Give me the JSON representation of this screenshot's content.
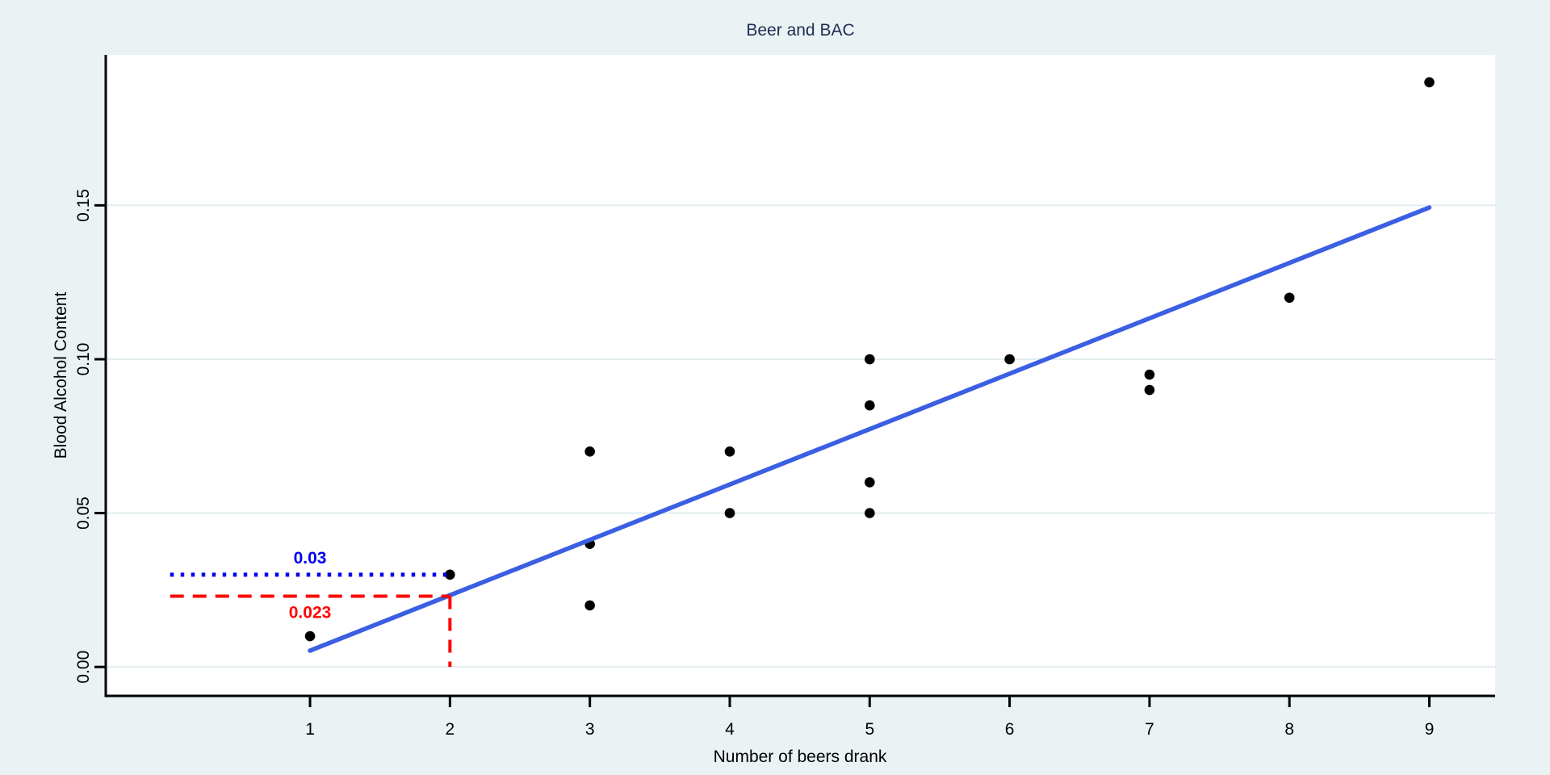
{
  "chart_data": {
    "type": "scatter",
    "title": "Beer and BAC",
    "xlabel": "Number of beers drank",
    "ylabel": "Blood Alcohol Content",
    "xlim": [
      -0.46,
      9.47
    ],
    "ylim": [
      -0.0094,
      0.1989
    ],
    "grid": true,
    "legend": "none",
    "x_ticks": [
      {
        "value": 1,
        "label": "1"
      },
      {
        "value": 2,
        "label": "2"
      },
      {
        "value": 3,
        "label": "3"
      },
      {
        "value": 4,
        "label": "4"
      },
      {
        "value": 5,
        "label": "5"
      },
      {
        "value": 6,
        "label": "6"
      },
      {
        "value": 7,
        "label": "7"
      },
      {
        "value": 8,
        "label": "8"
      },
      {
        "value": 9,
        "label": "9"
      }
    ],
    "y_ticks": [
      {
        "value": 0.0,
        "label": "0.00"
      },
      {
        "value": 0.05,
        "label": "0.05"
      },
      {
        "value": 0.1,
        "label": "0.10"
      },
      {
        "value": 0.15,
        "label": "0.15"
      }
    ],
    "points": [
      [
        1,
        0.01
      ],
      [
        2,
        0.03
      ],
      [
        3,
        0.02
      ],
      [
        3,
        0.04
      ],
      [
        3,
        0.07
      ],
      [
        4,
        0.05
      ],
      [
        4,
        0.07
      ],
      [
        5,
        0.05
      ],
      [
        5,
        0.06
      ],
      [
        5,
        0.085
      ],
      [
        5,
        0.1
      ],
      [
        6,
        0.1
      ],
      [
        7,
        0.09
      ],
      [
        7,
        0.095
      ],
      [
        8,
        0.12
      ],
      [
        9,
        0.19
      ]
    ],
    "fit_line": {
      "slope": 0.018,
      "intercept": -0.0127,
      "x_from": 1,
      "x_to": 9
    },
    "annotations": {
      "blue_guide": {
        "style": "dotted",
        "y": 0.03,
        "x_from": 0,
        "x_to": 2,
        "label": "0.03",
        "label_x": 1,
        "label_y": 0.0354
      },
      "red_guide_h": {
        "style": "dashed",
        "y": 0.023,
        "x_from": 0,
        "x_to": 2,
        "label": "0.023",
        "label_x": 1,
        "label_y": 0.0178
      },
      "red_guide_v": {
        "style": "dashed",
        "x": 2,
        "y_from": 0.0,
        "y_to": 0.023
      }
    }
  },
  "colors": {
    "background": "#eaf2f3",
    "plot_background": "#ffffff",
    "grid": "#e2edf0",
    "axis": "#000000",
    "tick_label": "#000000",
    "title": "#1e2d53",
    "point": "#000000",
    "fit_line": "#3b5fe3",
    "blue_annotation": "#0000ee",
    "red_annotation": "#ff0000"
  }
}
